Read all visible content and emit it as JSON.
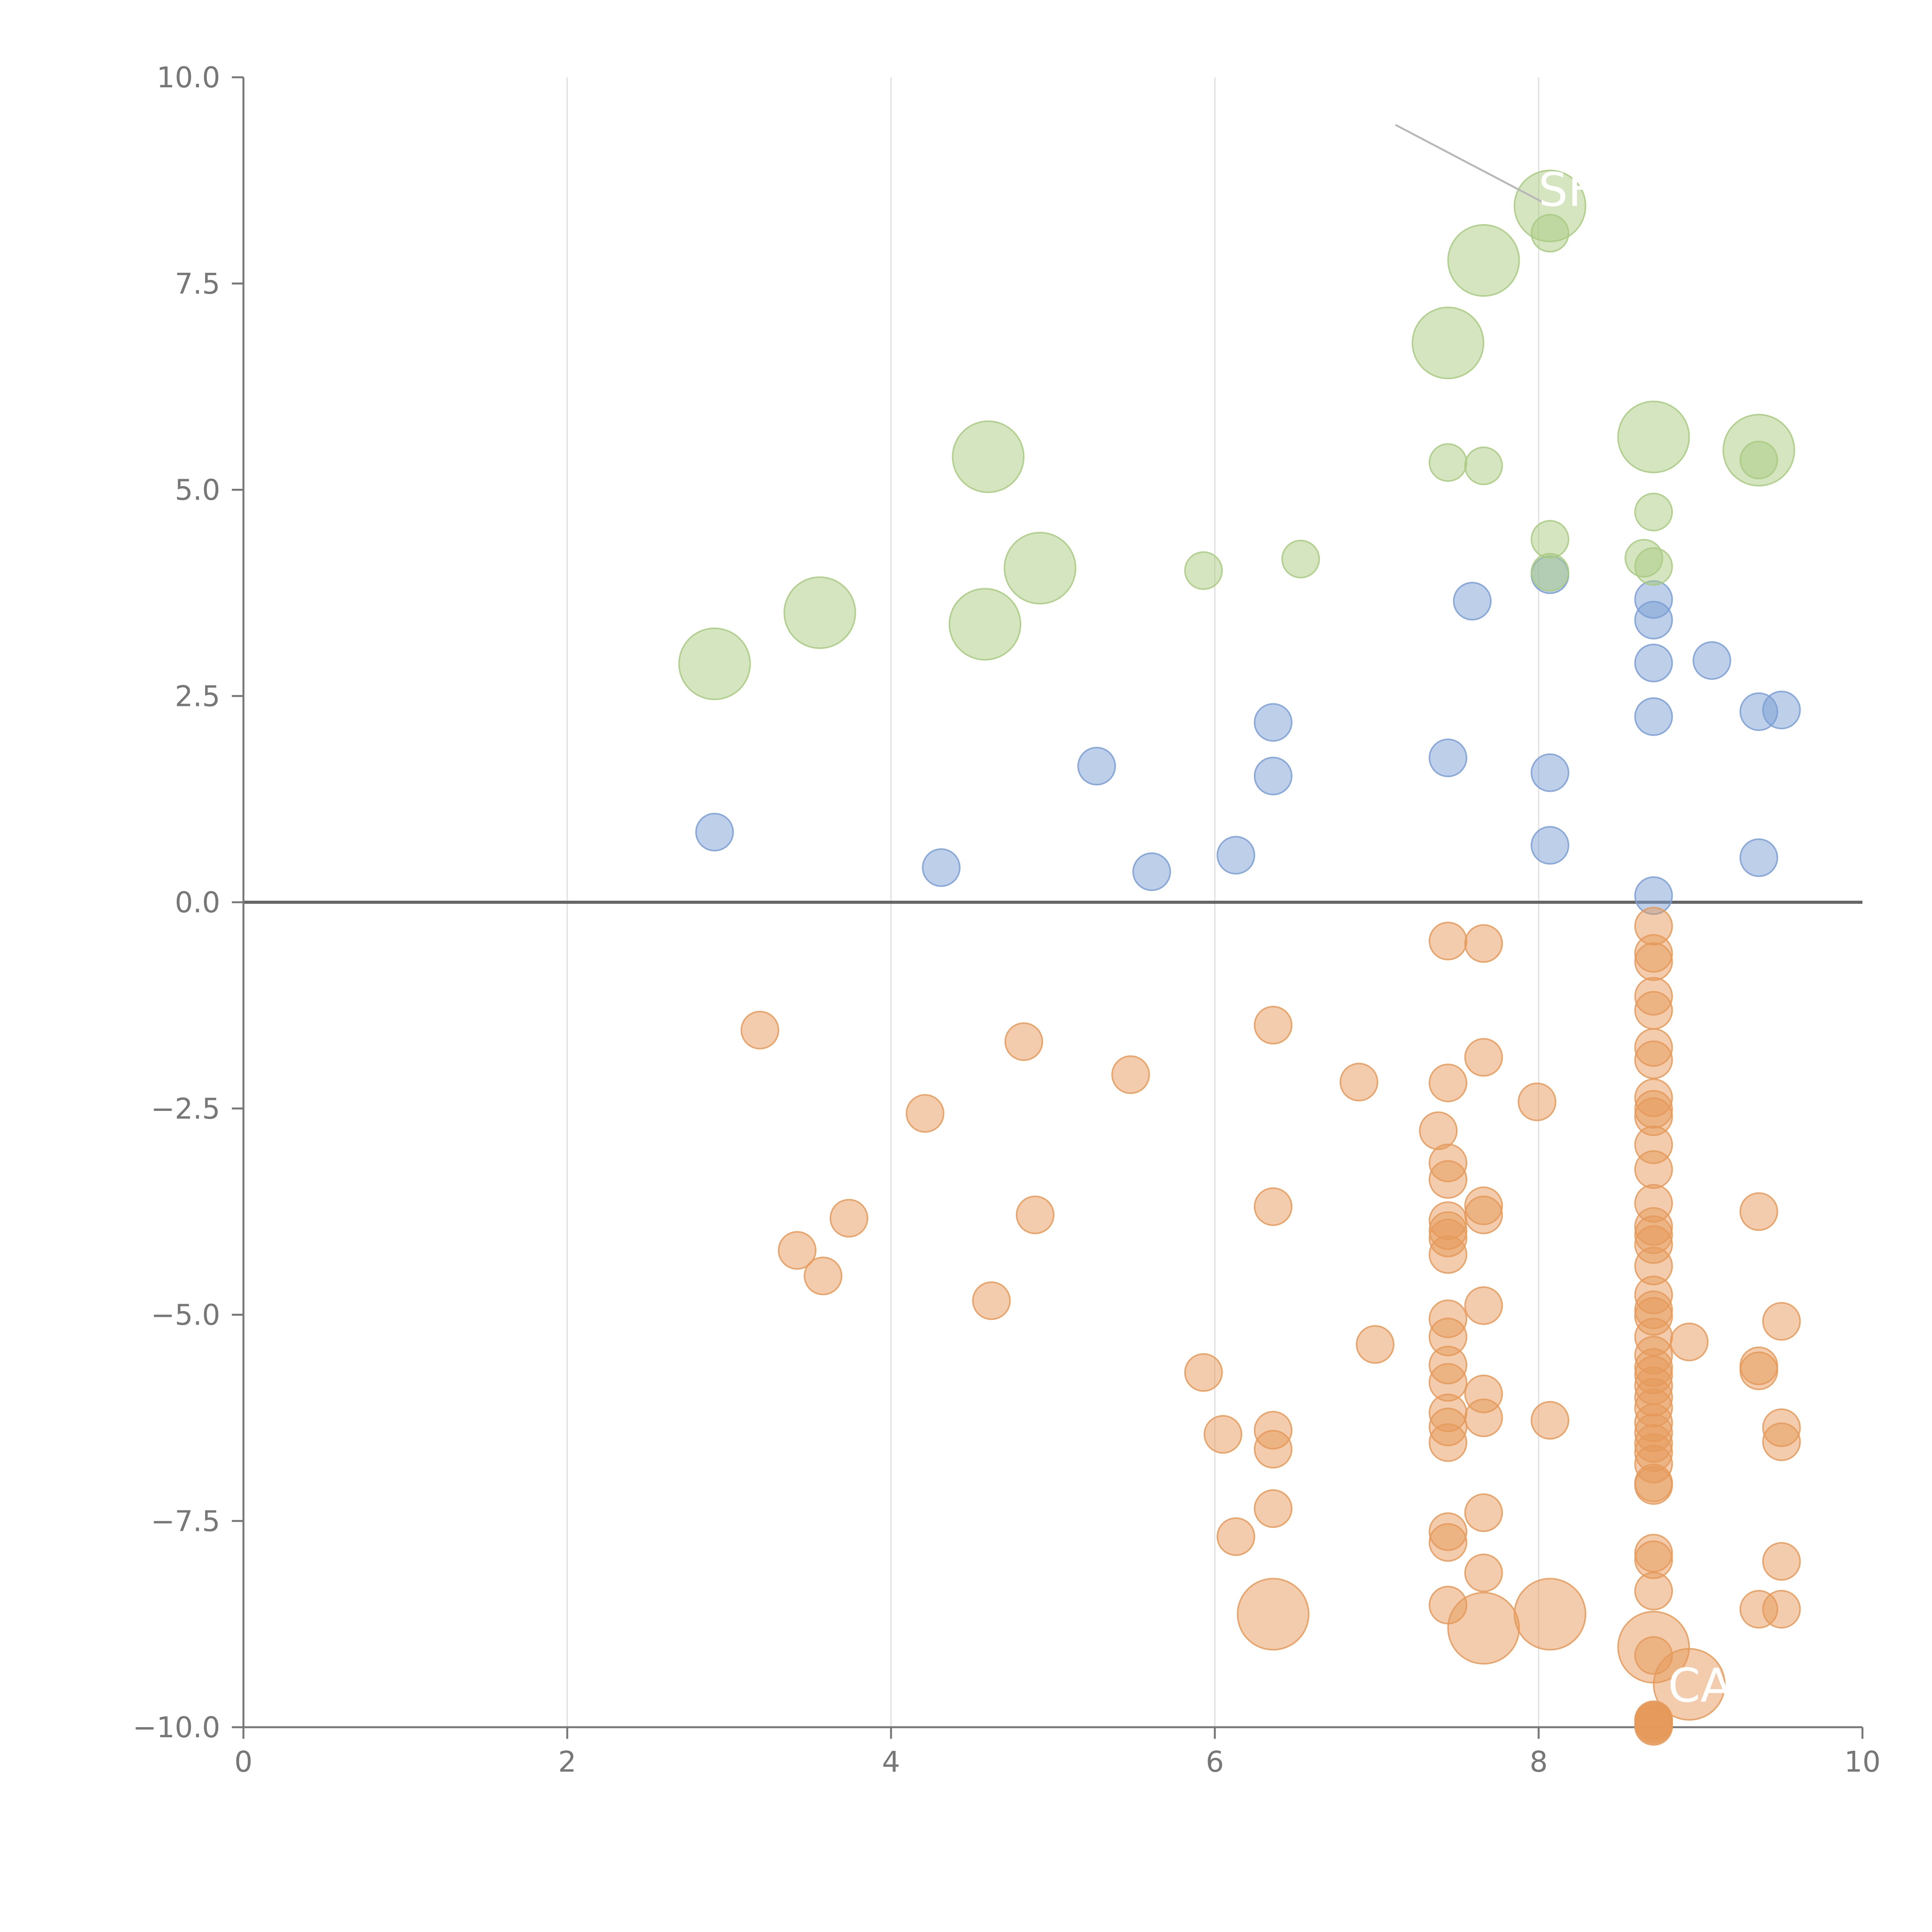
{
  "chart_data": {
    "type": "scatter",
    "title": "",
    "xlabel": "",
    "ylabel": "",
    "xlim": [
      0,
      10
    ],
    "ylim": [
      -10,
      10
    ],
    "x_ticks": [
      0,
      2,
      4,
      6,
      8,
      10
    ],
    "x_tick_labels": [
      "0",
      "2",
      "4",
      "6",
      "8",
      "10"
    ],
    "y_ticks": [
      -10,
      -7.5,
      -5,
      -2.5,
      0,
      2.5,
      5,
      7.5,
      10
    ],
    "y_tick_labels": [
      "−10.0",
      "−7.5",
      "−5.0",
      "−2.5",
      "0.0",
      "2.5",
      "5.0",
      "7.5",
      "10.0"
    ],
    "vertical_gridlines": true,
    "zero_line": true,
    "colors": {
      "blue": "#7b9fd4",
      "green": "#a9cb82",
      "orange": "#e59a5a",
      "axis": "#777777",
      "grid": "#dddddd",
      "zero_line": "#666666",
      "annotation": "#ffffff",
      "leader": "#b8b8b8"
    },
    "series": [
      {
        "name": "blue",
        "color": "#7b9fd4",
        "x": [
          2.91,
          4.31,
          5.27,
          5.61,
          6.13,
          6.36,
          6.36,
          7.44,
          7.59,
          8.07,
          8.07,
          8.07,
          8.71,
          8.71,
          8.71,
          8.71,
          8.71,
          9.07,
          9.36,
          9.36,
          9.5
        ],
        "y": [
          0.85,
          0.42,
          1.65,
          0.37,
          0.57,
          2.18,
          1.53,
          1.75,
          3.65,
          3.97,
          1.57,
          0.69,
          3.67,
          3.42,
          2.9,
          2.25,
          0.08,
          2.93,
          2.31,
          0.54,
          2.33
        ],
        "size": [
          1,
          1,
          1,
          1,
          1,
          1,
          1,
          1,
          1,
          1,
          1,
          1,
          1,
          1,
          1,
          1,
          1,
          1,
          1,
          1,
          1
        ]
      },
      {
        "name": "green",
        "color": "#a9cb82",
        "x": [
          2.91,
          3.56,
          4.58,
          4.6,
          4.92,
          5.93,
          6.53,
          7.44,
          7.44,
          7.66,
          7.66,
          8.07,
          8.07,
          8.07,
          8.07,
          8.65,
          8.71,
          8.71,
          8.71,
          9.36,
          9.36
        ],
        "y": [
          2.89,
          3.51,
          3.37,
          5.4,
          4.05,
          4.02,
          4.16,
          6.78,
          5.33,
          7.78,
          5.29,
          8.44,
          8.11,
          4.4,
          4.0,
          4.17,
          5.64,
          4.73,
          4.07,
          5.48,
          5.36
        ],
        "size": [
          2,
          2,
          2,
          2,
          2,
          1,
          1,
          2,
          1,
          2,
          1,
          2,
          1,
          1,
          1,
          1,
          2,
          1,
          1,
          2,
          1
        ]
      },
      {
        "name": "orange",
        "color": "#e59a5a",
        "x": [
          3.19,
          3.42,
          3.58,
          3.74,
          4.21,
          4.62,
          4.82,
          4.89,
          5.48,
          5.93,
          6.05,
          6.13,
          6.36,
          6.36,
          6.36,
          6.36,
          6.36,
          6.36,
          6.89,
          6.99,
          7.38,
          7.44,
          7.44,
          7.44,
          7.44,
          7.44,
          7.44,
          7.44,
          7.44,
          7.44,
          7.44,
          7.44,
          7.44,
          7.44,
          7.44,
          7.44,
          7.44,
          7.44,
          7.44,
          7.66,
          7.66,
          7.66,
          7.66,
          7.66,
          7.66,
          7.66,
          7.66,
          7.66,
          7.66,
          7.99,
          8.07,
          8.07,
          8.71,
          8.71,
          8.71,
          8.71,
          8.71,
          8.71,
          8.71,
          8.71,
          8.71,
          8.71,
          8.71,
          8.71,
          8.71,
          8.71,
          8.71,
          8.71,
          8.71,
          8.71,
          8.71,
          8.71,
          8.71,
          8.71,
          8.71,
          8.71,
          8.71,
          8.71,
          8.71,
          8.71,
          8.71,
          8.71,
          8.71,
          8.71,
          8.71,
          8.71,
          8.71,
          8.71,
          8.71,
          8.71,
          8.71,
          8.71,
          8.71,
          8.71,
          8.71,
          8.71,
          8.71,
          8.93,
          8.93,
          9.36,
          9.36,
          9.36,
          9.36,
          9.5,
          9.5,
          9.5,
          9.5,
          9.5
        ],
        "y": [
          -1.55,
          -4.22,
          -4.53,
          -3.83,
          -2.56,
          -4.83,
          -1.69,
          -3.79,
          -2.09,
          -5.7,
          -6.45,
          -7.69,
          -1.49,
          -3.69,
          -6.4,
          -6.63,
          -7.35,
          -8.63,
          -2.18,
          -5.36,
          -2.77,
          -0.47,
          -2.19,
          -3.16,
          -3.36,
          -3.86,
          -3.98,
          -4.07,
          -4.27,
          -5.05,
          -5.27,
          -5.61,
          -5.82,
          -6.19,
          -6.36,
          -6.55,
          -7.63,
          -7.76,
          -8.52,
          -0.5,
          -1.88,
          -3.68,
          -3.79,
          -4.89,
          -5.96,
          -6.25,
          -7.4,
          -8.13,
          -8.8,
          -2.42,
          -6.28,
          -8.63,
          -0.29,
          -0.62,
          -0.72,
          -1.14,
          -1.31,
          -1.76,
          -1.91,
          -2.37,
          -2.51,
          -2.6,
          -2.94,
          -3.24,
          -3.65,
          -3.93,
          -4.03,
          -4.15,
          -4.41,
          -4.76,
          -4.94,
          -5.02,
          -5.27,
          -5.49,
          -5.64,
          -5.73,
          -5.86,
          -6.0,
          -6.13,
          -6.31,
          -6.43,
          -6.56,
          -6.67,
          -6.81,
          -7.04,
          -7.07,
          -7.89,
          -7.97,
          -8.35,
          -9.03,
          -9.13,
          -9.95,
          -9.99,
          -9.97,
          -9.93,
          -9.91,
          -9.92,
          -5.33,
          -9.48,
          -3.75,
          -5.62,
          -5.68,
          -8.57,
          -5.08,
          -6.37,
          -6.54,
          -7.99,
          -8.57
        ],
        "size": [
          1,
          1,
          1,
          1,
          1,
          1,
          1,
          1,
          1,
          1,
          1,
          1,
          1,
          1,
          1,
          1,
          1,
          2,
          1,
          1,
          1,
          1,
          1,
          1,
          1,
          1,
          1,
          1,
          1,
          1,
          1,
          1,
          1,
          1,
          1,
          1,
          1,
          1,
          1,
          1,
          1,
          1,
          1,
          1,
          1,
          1,
          1,
          1,
          2,
          1,
          1,
          2,
          1,
          1,
          1,
          1,
          1,
          1,
          1,
          1,
          1,
          1,
          1,
          1,
          1,
          1,
          1,
          1,
          1,
          1,
          1,
          1,
          1,
          1,
          1,
          1,
          1,
          1,
          1,
          1,
          1,
          1,
          1,
          1,
          1,
          1,
          1,
          1,
          1,
          2,
          1,
          1,
          1,
          1,
          1,
          1,
          1,
          1,
          2,
          1,
          1,
          1,
          1,
          1,
          1,
          1,
          1,
          1
        ]
      }
    ],
    "annotations": [
      {
        "text": "SF",
        "x": 8.07,
        "y": 8.44
      },
      {
        "text": "CA",
        "x": 8.93,
        "y": -9.48
      }
    ]
  }
}
